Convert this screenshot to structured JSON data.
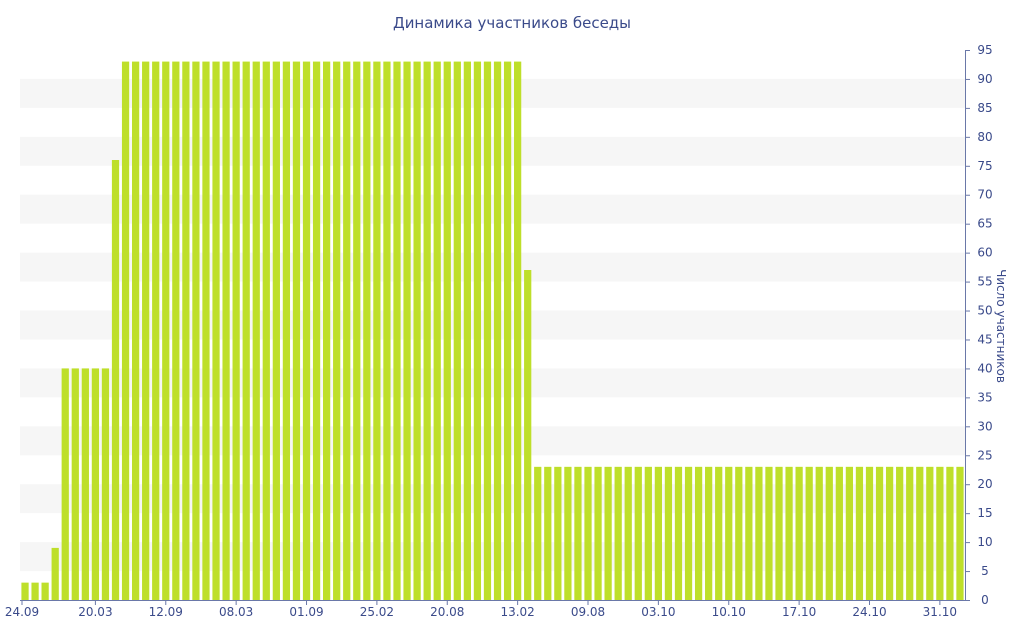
{
  "chart_data": {
    "type": "bar",
    "title": "Динамика участников беседы",
    "xlabel": "",
    "ylabel": "Число участников",
    "ylim": [
      0,
      95
    ],
    "y_ticks": [
      0,
      5,
      10,
      15,
      20,
      25,
      30,
      35,
      40,
      45,
      50,
      55,
      60,
      65,
      70,
      75,
      80,
      85,
      90,
      95
    ],
    "y_axis_position": "right",
    "grid": "alternating horizontal bands",
    "bar_color": "#bedf2a",
    "band_color": "#f6f6f6",
    "text_color": "#3a4a8a",
    "x_tick_labels": [
      "24.09",
      "20.03",
      "12.09",
      "08.03",
      "01.09",
      "25.02",
      "20.08",
      "13.02",
      "09.08",
      "03.10",
      "10.10",
      "17.10",
      "24.10",
      "31.10"
    ],
    "x_tick_bar_index": [
      0,
      7,
      14,
      21,
      28,
      35,
      42,
      49,
      56,
      63,
      70,
      77,
      84,
      91
    ],
    "values": [
      3,
      3,
      3,
      9,
      40,
      40,
      40,
      40,
      40,
      76,
      93,
      93,
      93,
      93,
      93,
      93,
      93,
      93,
      93,
      93,
      93,
      93,
      93,
      93,
      93,
      93,
      93,
      93,
      93,
      93,
      93,
      93,
      93,
      93,
      93,
      93,
      93,
      93,
      93,
      93,
      93,
      93,
      93,
      93,
      93,
      93,
      93,
      93,
      93,
      93,
      57,
      23,
      23,
      23,
      23,
      23,
      23,
      23,
      23,
      23,
      23,
      23,
      23,
      23,
      23,
      23,
      23,
      23,
      23,
      23,
      23,
      23,
      23,
      23,
      23,
      23,
      23,
      23,
      23,
      23,
      23,
      23,
      23,
      23,
      23,
      23,
      23,
      23,
      23,
      23,
      23,
      23,
      23,
      23
    ]
  }
}
